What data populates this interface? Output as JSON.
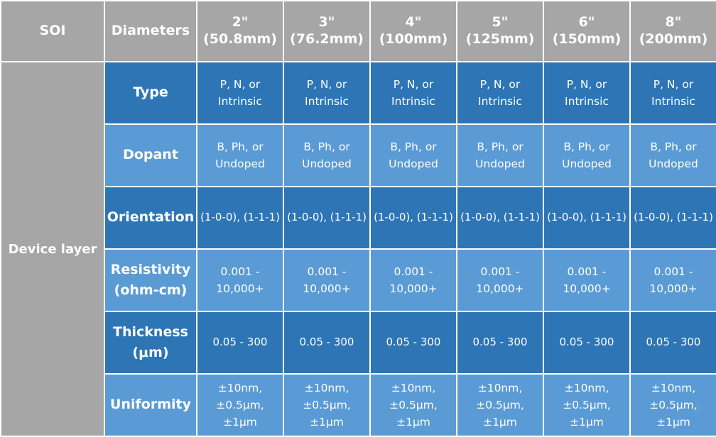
{
  "table": {
    "corner_label": "SOI",
    "diameters_label": "Diameters",
    "columns": [
      {
        "size": "2\"",
        "metric": "(50.8mm)"
      },
      {
        "size": "3\"",
        "metric": "(76.2mm)"
      },
      {
        "size": "4\"",
        "metric": "(100mm)"
      },
      {
        "size": "5\"",
        "metric": "(125mm)"
      },
      {
        "size": "6\"",
        "metric": "(150mm)"
      },
      {
        "size": "8\"",
        "metric": "(200mm)"
      }
    ],
    "group_label": "Device layer",
    "rows": [
      {
        "label": [
          "Type"
        ],
        "shade": "dark",
        "cells": [
          [
            "P, N, or",
            "Intrinsic"
          ],
          [
            "P, N, or",
            "Intrinsic"
          ],
          [
            "P, N, or",
            "Intrinsic"
          ],
          [
            "P, N, or",
            "Intrinsic"
          ],
          [
            "P, N, or",
            "Intrinsic"
          ],
          [
            "P, N, or",
            "Intrinsic"
          ]
        ]
      },
      {
        "label": [
          "Dopant"
        ],
        "shade": "light",
        "cells": [
          [
            "B, Ph, or",
            "Undoped"
          ],
          [
            "B, Ph, or",
            "Undoped"
          ],
          [
            "B, Ph, or",
            "Undoped"
          ],
          [
            "B, Ph, or",
            "Undoped"
          ],
          [
            "B, Ph, or",
            "Undoped"
          ],
          [
            "B, Ph, or",
            "Undoped"
          ]
        ]
      },
      {
        "label": [
          "Orientation"
        ],
        "shade": "dark",
        "cells": [
          [
            "(1-0-0), (1-1-1)"
          ],
          [
            "(1-0-0), (1-1-1)"
          ],
          [
            "(1-0-0), (1-1-1)"
          ],
          [
            "(1-0-0), (1-1-1)"
          ],
          [
            "(1-0-0), (1-1-1)"
          ],
          [
            "(1-0-0), (1-1-1)"
          ]
        ]
      },
      {
        "label": [
          "Resistivity",
          "(ohm-cm)"
        ],
        "shade": "light",
        "cells": [
          [
            "0.001 -",
            "10,000+"
          ],
          [
            "0.001 -",
            "10,000+"
          ],
          [
            "0.001 -",
            "10,000+"
          ],
          [
            "0.001 -",
            "10,000+"
          ],
          [
            "0.001 -",
            "10,000+"
          ],
          [
            "0.001 -",
            "10,000+"
          ]
        ]
      },
      {
        "label": [
          "Thickness",
          "(μm)"
        ],
        "shade": "dark",
        "cells": [
          [
            "0.05 - 300"
          ],
          [
            "0.05 - 300"
          ],
          [
            "0.05 - 300"
          ],
          [
            "0.05 - 300"
          ],
          [
            "0.05 - 300"
          ],
          [
            "0.05 - 300"
          ]
        ]
      },
      {
        "label": [
          "Uniformity"
        ],
        "shade": "light",
        "cells": [
          [
            "±10nm,",
            "±0.5μm, ±1μm"
          ],
          [
            "±10nm,",
            "±0.5μm, ±1μm"
          ],
          [
            "±10nm,",
            "±0.5μm, ±1μm"
          ],
          [
            "±10nm,",
            "±0.5μm, ±1μm"
          ],
          [
            "±10nm,",
            "±0.5μm, ±1μm"
          ],
          [
            "±10nm,",
            "±0.5μm, ±1μm"
          ]
        ]
      }
    ]
  },
  "colors": {
    "header_gray": "#a6a6a6",
    "row_dark_blue": "#2e75b6",
    "row_light_blue": "#5b9bd5",
    "text": "#ffffff"
  }
}
